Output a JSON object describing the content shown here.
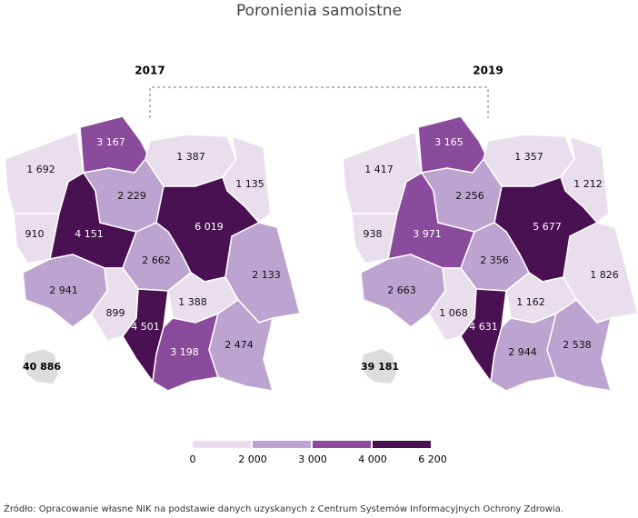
{
  "title": "Poronienia samoistne",
  "maps": [
    {
      "year": "2017",
      "total": {
        "value": 40886,
        "label": "40 886"
      },
      "regions": [
        {
          "value": 1692,
          "label": "1 692"
        },
        {
          "value": 3167,
          "label": "3 167"
        },
        {
          "value": 1387,
          "label": "1 387"
        },
        {
          "value": 1135,
          "label": "1 135"
        },
        910,
        {
          "value": 4151,
          "label": "4 151"
        },
        {
          "value": 2229,
          "label": "2 229"
        },
        {
          "value": 6019,
          "label": "6 019"
        },
        {
          "value": 2662,
          "label": "2 662"
        },
        {
          "value": 2133,
          "label": "2 133"
        },
        {
          "value": 2941,
          "label": "2 941"
        },
        899,
        {
          "value": 4501,
          "label": "4 501"
        },
        {
          "value": 1388,
          "label": "1 388"
        },
        {
          "value": 3198,
          "label": "3 198"
        },
        {
          "value": 2474,
          "label": "2 474"
        }
      ]
    },
    {
      "year": "2019",
      "total": {
        "value": 39181,
        "label": "39 181"
      },
      "regions": [
        {
          "value": 1417,
          "label": "1 417"
        },
        {
          "value": 3165,
          "label": "3 165"
        },
        {
          "value": 1357,
          "label": "1 357"
        },
        {
          "value": 1212,
          "label": "1 212"
        },
        938,
        {
          "value": 3971,
          "label": "3 971"
        },
        {
          "value": 2256,
          "label": "2 256"
        },
        {
          "value": 5677,
          "label": "5 677"
        },
        {
          "value": 2356,
          "label": "2 356"
        },
        {
          "value": 1826,
          "label": "1 826"
        },
        {
          "value": 2663,
          "label": "2 663"
        },
        {
          "value": 1068,
          "label": "1 068"
        },
        {
          "value": 4631,
          "label": "4 631"
        },
        {
          "value": 1162,
          "label": "1 162"
        },
        {
          "value": 2944,
          "label": "2 944"
        },
        {
          "value": 2538,
          "label": "2 538"
        }
      ]
    }
  ],
  "legend": {
    "breaks": [
      0,
      {
        "value": 2000,
        "label": "2 000"
      },
      {
        "value": 3000,
        "label": "3 000"
      },
      {
        "value": 4000,
        "label": "4 000"
      },
      {
        "value": 6200,
        "label": "6 200"
      }
    ],
    "colors": [
      "#e9dfec",
      "#bda3cf",
      "#8b4b9c",
      "#4a1152"
    ]
  },
  "source": "Źródło: Opracowanie własne NIK na podstawie danych uzyskanych z Centrum Systemów Informacyjnych Ochrony Zdrowia."
}
